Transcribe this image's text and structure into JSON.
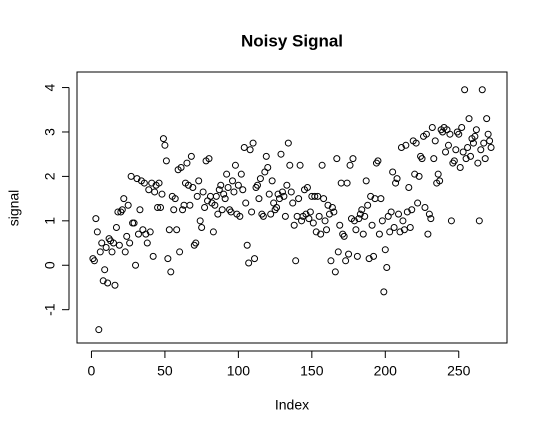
{
  "chart_data": {
    "type": "scatter",
    "title": "Noisy Signal",
    "x_label": "Index",
    "y_label": "signal",
    "x": [
      1,
      2,
      3,
      4,
      5,
      6,
      7,
      8,
      9,
      10,
      11,
      12,
      13,
      14,
      15,
      16,
      17,
      18,
      19,
      20,
      21,
      22,
      23,
      24,
      25,
      26,
      27,
      28,
      29,
      30,
      31,
      32,
      33,
      34,
      35,
      36,
      37,
      38,
      39,
      40,
      41,
      42,
      43,
      44,
      45,
      46,
      47,
      48,
      49,
      50,
      51,
      52,
      53,
      54,
      55,
      56,
      57,
      58,
      59,
      60,
      61,
      62,
      63,
      64,
      65,
      66,
      67,
      68,
      69,
      70,
      71,
      72,
      73,
      74,
      75,
      76,
      77,
      78,
      79,
      80,
      81,
      82,
      83,
      84,
      85,
      86,
      87,
      88,
      89,
      90,
      91,
      92,
      93,
      94,
      95,
      96,
      97,
      98,
      99,
      100,
      101,
      102,
      103,
      104,
      105,
      106,
      107,
      108,
      109,
      110,
      111,
      112,
      113,
      114,
      115,
      116,
      117,
      118,
      119,
      120,
      121,
      122,
      123,
      124,
      125,
      126,
      127,
      128,
      129,
      130,
      131,
      132,
      133,
      134,
      135,
      136,
      137,
      138,
      139,
      140,
      141,
      142,
      143,
      144,
      145,
      146,
      147,
      148,
      149,
      150,
      151,
      152,
      153,
      154,
      155,
      156,
      157,
      158,
      159,
      160,
      161,
      162,
      163,
      164,
      165,
      166,
      167,
      168,
      169,
      170,
      171,
      172,
      173,
      174,
      175,
      176,
      177,
      178,
      179,
      180,
      181,
      182,
      183,
      184,
      185,
      186,
      187,
      188,
      189,
      190,
      191,
      192,
      193,
      194,
      195,
      196,
      197,
      198,
      199,
      200,
      201,
      202,
      203,
      204,
      205,
      206,
      207,
      208,
      209,
      210,
      211,
      212,
      213,
      214,
      215,
      216,
      217,
      218,
      219,
      220,
      221,
      222,
      223,
      224,
      225,
      226,
      227,
      228,
      229,
      230,
      231,
      232,
      233,
      234,
      235,
      236,
      237,
      238,
      239,
      240,
      241,
      242,
      243,
      244,
      245,
      246,
      247,
      248,
      249,
      250,
      251,
      252,
      253,
      254,
      255,
      256,
      257,
      258,
      259,
      260,
      261,
      262,
      263,
      264,
      265,
      266,
      267,
      268,
      269,
      270,
      271,
      272
    ],
    "values": [
      0.15,
      0.1,
      1.05,
      0.75,
      -1.45,
      0.3,
      0.5,
      -0.35,
      -0.1,
      0.4,
      -0.4,
      0.6,
      0.55,
      0.3,
      0.5,
      -0.45,
      0.85,
      1.2,
      0.45,
      1.2,
      1.25,
      1.5,
      0.3,
      0.65,
      1.35,
      0.5,
      2.0,
      0.95,
      0.95,
      0.0,
      1.95,
      0.7,
      1.25,
      1.9,
      0.8,
      1.85,
      0.7,
      0.5,
      1.7,
      0.75,
      1.85,
      0.2,
      1.65,
      1.8,
      1.3,
      1.85,
      1.3,
      1.6,
      2.85,
      2.7,
      2.35,
      0.15,
      0.8,
      -0.15,
      1.55,
      1.25,
      1.5,
      0.8,
      2.15,
      0.3,
      2.2,
      1.25,
      1.35,
      1.85,
      2.3,
      1.8,
      1.35,
      2.45,
      1.75,
      0.45,
      0.5,
      1.55,
      1.9,
      1.0,
      0.85,
      1.65,
      1.3,
      2.35,
      1.45,
      2.4,
      1.55,
      1.4,
      0.75,
      1.35,
      1.55,
      1.15,
      1.7,
      1.8,
      1.25,
      1.6,
      1.5,
      2.05,
      1.75,
      1.25,
      1.2,
      1.9,
      1.65,
      2.25,
      1.15,
      1.8,
      1.1,
      2.05,
      1.7,
      2.65,
      1.4,
      0.45,
      0.05,
      2.6,
      1.2,
      2.75,
      0.15,
      1.75,
      1.8,
      1.5,
      1.95,
      1.15,
      1.1,
      2.1,
      2.45,
      2.2,
      1.6,
      1.15,
      1.9,
      1.4,
      1.25,
      1.3,
      1.6,
      1.5,
      2.5,
      1.65,
      1.55,
      1.1,
      1.8,
      2.75,
      2.25,
      1.65,
      1.4,
      0.9,
      0.1,
      1.1,
      1.5,
      2.25,
      1.0,
      1.1,
      1.7,
      1.15,
      1.75,
      1.05,
      1.2,
      1.55,
      0.95,
      1.55,
      0.75,
      1.55,
      1.1,
      0.7,
      2.25,
      1.5,
      1.0,
      0.8,
      1.35,
      1.15,
      0.1,
      1.3,
      1.2,
      -0.15,
      2.4,
      0.3,
      0.9,
      1.85,
      0.7,
      0.65,
      0.1,
      1.85,
      0.25,
      2.25,
      1.05,
      2.4,
      1.0,
      0.8,
      0.2,
      1.05,
      1.15,
      1.25,
      0.7,
      1.1,
      1.9,
      1.35,
      0.15,
      1.55,
      0.9,
      0.2,
      1.5,
      2.3,
      2.35,
      0.7,
      1.5,
      1.0,
      -0.6,
      0.35,
      -0.05,
      1.1,
      0.75,
      1.2,
      2.1,
      0.85,
      1.85,
      1.95,
      1.15,
      0.75,
      2.65,
      1.0,
      0.8,
      2.7,
      1.2,
      1.75,
      0.85,
      1.25,
      2.8,
      2.05,
      2.75,
      1.4,
      2.0,
      2.45,
      2.4,
      2.9,
      1.3,
      2.95,
      0.7,
      1.15,
      1.05,
      3.1,
      2.4,
      2.8,
      1.85,
      2.05,
      1.9,
      3.05,
      3.0,
      3.1,
      2.55,
      3.05,
      2.7,
      2.95,
      1.0,
      2.3,
      2.35,
      2.6,
      3.0,
      2.95,
      2.2,
      3.1,
      2.55,
      3.95,
      2.4,
      2.65,
      3.3,
      2.45,
      2.85,
      2.75,
      2.9,
      3.05,
      2.3,
      1.0,
      2.6,
      3.95,
      2.75,
      2.4,
      3.3,
      2.95,
      2.8,
      2.65
    ],
    "color": "#000000",
    "xlim": [
      -9.84,
      282.84
    ],
    "xticks": [
      0,
      50,
      100,
      150,
      200,
      250
    ],
    "ylim": [
      -1.75,
      4.35
    ],
    "yticks": [
      -1,
      0,
      1,
      2,
      3,
      4
    ]
  }
}
